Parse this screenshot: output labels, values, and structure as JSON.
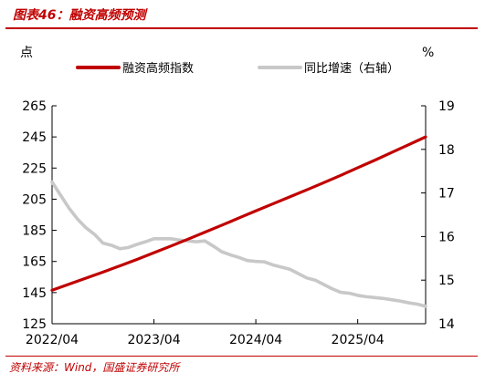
{
  "figure": {
    "title": "图表46：融资高频预测",
    "source": "资料来源：Wind，国盛证券研究所"
  },
  "chart_data": {
    "type": "line",
    "left_axis": {
      "unit": "点",
      "ylim": [
        125,
        265
      ],
      "ticks": [
        "125",
        "145",
        "165",
        "185",
        "205",
        "225",
        "245",
        "265"
      ]
    },
    "right_axis": {
      "unit": "%",
      "ylim": [
        14,
        19
      ],
      "ticks": [
        "14",
        "15",
        "16",
        "17",
        "18",
        "19"
      ]
    },
    "x_axis": {
      "ticks": [
        "2022/04",
        "2023/04",
        "2024/04",
        "2025/04"
      ],
      "range": [
        "2022-04",
        "2025-12"
      ]
    },
    "grid": false,
    "legend_placement": "top",
    "series": [
      {
        "name": "融资高频指数",
        "axis": "left",
        "color": "#c00000",
        "x": [
          "2022-04",
          "2022-06",
          "2022-08",
          "2022-10",
          "2022-12",
          "2023-02",
          "2023-04",
          "2023-06",
          "2023-08",
          "2023-10",
          "2023-12",
          "2024-02",
          "2024-04",
          "2024-06",
          "2024-08",
          "2024-10",
          "2024-12",
          "2025-02",
          "2025-04",
          "2025-06",
          "2025-08",
          "2025-10",
          "2025-12"
        ],
        "values": [
          146.5,
          150.4,
          154.3,
          158.2,
          162.2,
          166.3,
          170.6,
          174.9,
          179.3,
          183.8,
          188.3,
          192.9,
          197.5,
          202.0,
          206.5,
          211.0,
          215.6,
          220.3,
          225.2,
          230.0,
          235.0,
          240.0,
          245.0
        ]
      },
      {
        "name": "同比增速（右轴）",
        "axis": "right",
        "color": "#c8c8c8",
        "x": [
          "2022-04",
          "2022-05",
          "2022-06",
          "2022-07",
          "2022-08",
          "2022-09",
          "2022-10",
          "2022-11",
          "2022-12",
          "2023-01",
          "2023-02",
          "2023-03",
          "2023-04",
          "2023-05",
          "2023-06",
          "2023-07",
          "2023-08",
          "2023-09",
          "2023-10",
          "2023-11",
          "2023-12",
          "2024-01",
          "2024-02",
          "2024-03",
          "2024-04",
          "2024-05",
          "2024-06",
          "2024-07",
          "2024-08",
          "2024-09",
          "2024-10",
          "2024-11",
          "2024-12",
          "2025-01",
          "2025-02",
          "2025-03",
          "2025-04",
          "2025-05",
          "2025-06",
          "2025-07",
          "2025-08",
          "2025-09",
          "2025-10",
          "2025-11",
          "2025-12"
        ],
        "values": [
          17.25,
          16.95,
          16.65,
          16.4,
          16.2,
          16.05,
          15.85,
          15.8,
          15.72,
          15.75,
          15.82,
          15.88,
          15.95,
          15.95,
          15.95,
          15.92,
          15.9,
          15.88,
          15.9,
          15.78,
          15.65,
          15.58,
          15.52,
          15.45,
          15.43,
          15.42,
          15.35,
          15.3,
          15.25,
          15.15,
          15.05,
          15.0,
          14.9,
          14.8,
          14.72,
          14.7,
          14.65,
          14.62,
          14.6,
          14.58,
          14.55,
          14.52,
          14.48,
          14.45,
          14.4
        ]
      }
    ]
  }
}
